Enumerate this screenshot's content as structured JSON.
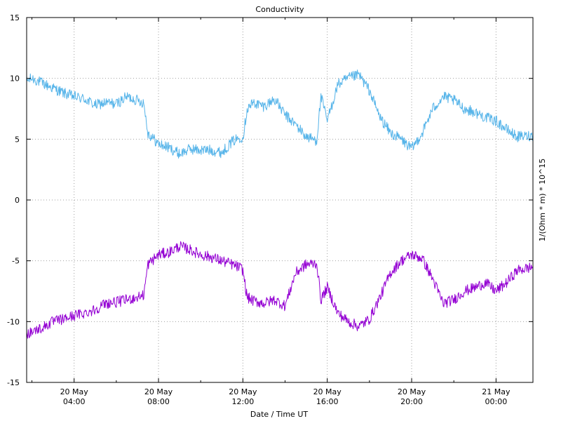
{
  "chart_data": {
    "type": "line",
    "title": "Conductivity",
    "xlabel": "Date / Time UT",
    "ylabel": "1/(Ohm * m) * 10^15",
    "ylim": [
      -15,
      15
    ],
    "yticks": [
      -15,
      -10,
      -5,
      0,
      5,
      10,
      15
    ],
    "xlim_hours": [
      1.75,
      25.75
    ],
    "xticks": [
      {
        "hour": 4,
        "label_date": "20 May",
        "label_time": "04:00"
      },
      {
        "hour": 8,
        "label_date": "20 May",
        "label_time": "08:00"
      },
      {
        "hour": 12,
        "label_date": "20 May",
        "label_time": "12:00"
      },
      {
        "hour": 16,
        "label_date": "20 May",
        "label_time": "16:00"
      },
      {
        "hour": 20,
        "label_date": "20 May",
        "label_time": "20:00"
      },
      {
        "hour": 24,
        "label_date": "21 May",
        "label_time": "00:00"
      }
    ],
    "grid": true,
    "legend": "none",
    "series": [
      {
        "color": "#56b4e9",
        "x": [
          1.75,
          2.0,
          2.5,
          3.0,
          3.5,
          4.0,
          4.5,
          5.0,
          5.5,
          6.0,
          6.5,
          7.0,
          7.3,
          7.5,
          8.0,
          8.5,
          9.0,
          9.5,
          10.0,
          10.5,
          11.0,
          11.5,
          11.9,
          12.0,
          12.2,
          12.5,
          13.0,
          13.5,
          14.0,
          14.5,
          15.0,
          15.5,
          15.7,
          16.0,
          16.5,
          17.0,
          17.5,
          18.0,
          18.5,
          19.0,
          19.5,
          20.0,
          20.5,
          21.0,
          21.5,
          22.0,
          22.5,
          23.0,
          23.5,
          24.0,
          24.5,
          25.0,
          25.75
        ],
        "y": [
          9.8,
          10.0,
          9.6,
          9.2,
          8.8,
          8.5,
          8.3,
          7.8,
          8.0,
          7.9,
          8.5,
          8.2,
          8.0,
          5.5,
          4.6,
          4.3,
          3.8,
          4.2,
          4.1,
          4.1,
          3.9,
          4.8,
          5.2,
          5.1,
          7.5,
          8.0,
          7.7,
          8.3,
          7.0,
          6.2,
          5.2,
          4.9,
          8.5,
          6.5,
          9.5,
          10.0,
          10.3,
          9.0,
          6.8,
          5.5,
          5.0,
          4.2,
          5.5,
          7.5,
          8.5,
          8.2,
          7.5,
          7.2,
          6.8,
          6.5,
          5.8,
          5.2,
          5.3
        ]
      },
      {
        "color": "#9400d3",
        "x": [
          1.75,
          2.0,
          2.5,
          3.0,
          3.5,
          4.0,
          4.5,
          5.0,
          5.5,
          6.0,
          6.5,
          7.0,
          7.3,
          7.5,
          8.0,
          8.5,
          9.0,
          9.5,
          10.0,
          10.5,
          11.0,
          11.5,
          11.9,
          12.0,
          12.2,
          12.5,
          13.0,
          13.5,
          14.0,
          14.5,
          15.0,
          15.5,
          15.7,
          16.0,
          16.5,
          17.0,
          17.5,
          18.0,
          18.5,
          19.0,
          19.5,
          20.0,
          20.5,
          21.0,
          21.5,
          22.0,
          22.5,
          23.0,
          23.5,
          24.0,
          24.5,
          25.0,
          25.75
        ],
        "y": [
          -11.0,
          -10.8,
          -10.5,
          -10.0,
          -9.8,
          -9.5,
          -9.3,
          -9.0,
          -8.5,
          -8.4,
          -8.2,
          -8.0,
          -7.8,
          -5.3,
          -4.5,
          -4.3,
          -3.8,
          -4.1,
          -4.5,
          -4.7,
          -5.0,
          -5.3,
          -5.6,
          -5.8,
          -8.0,
          -8.3,
          -8.5,
          -8.2,
          -8.7,
          -6.0,
          -5.3,
          -5.2,
          -8.2,
          -7.2,
          -9.3,
          -10.0,
          -10.4,
          -9.8,
          -8.0,
          -6.0,
          -5.0,
          -4.5,
          -4.8,
          -6.5,
          -8.5,
          -8.2,
          -7.5,
          -7.2,
          -6.8,
          -7.5,
          -6.8,
          -5.8,
          -5.5
        ]
      }
    ]
  }
}
